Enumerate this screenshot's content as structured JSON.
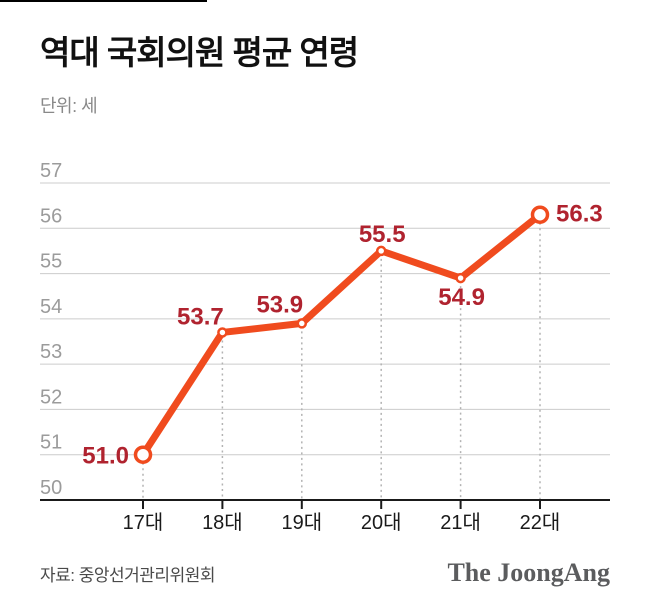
{
  "page": {
    "title": "역대 국회의원 평균 연령",
    "unit_label": "단위: 세",
    "source_label": "자료: 중앙선거관리위원회",
    "logo_text": "The JoongAng"
  },
  "colors": {
    "line": "#f04b1e",
    "marker_fill": "#ffffff",
    "value_label": "#b0232f",
    "grid": "#cccccc",
    "axis": "#1a1a1a",
    "y_tick_label": "#9b9b9b",
    "x_tick_label": "#1a1a1a",
    "leader_dash": "#b3b3b3",
    "top_rule": "#000000"
  },
  "chart_data": {
    "type": "line",
    "title": "역대 국회의원 평균 연령",
    "unit": "세",
    "categories": [
      "17대",
      "18대",
      "19대",
      "20대",
      "21대",
      "22대"
    ],
    "values": [
      51.0,
      53.7,
      53.9,
      55.5,
      54.9,
      56.3
    ],
    "value_labels": [
      "51.0",
      "53.7",
      "53.9",
      "55.5",
      "54.9",
      "56.3"
    ],
    "xlabel": "",
    "ylabel": "단위: 세",
    "ylim": [
      50,
      57
    ],
    "y_ticks": [
      50,
      51,
      52,
      53,
      54,
      55,
      56,
      57
    ],
    "grid": true,
    "legend": false,
    "source": "중앙선거관리위원회"
  }
}
